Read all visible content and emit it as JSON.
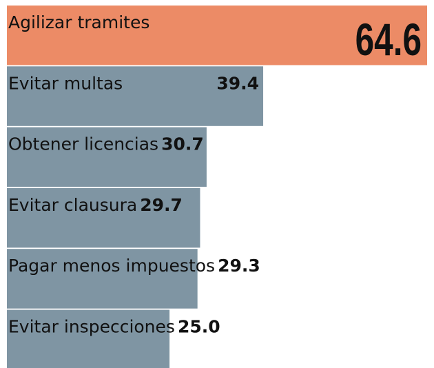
{
  "chart_data": {
    "type": "bar",
    "orientation": "horizontal",
    "categories": [
      "Agilizar tramites",
      "Evitar multas",
      "Obtener licencias",
      "Evitar clausura",
      "Pagar menos impuestos",
      "Evitar inspecciones"
    ],
    "values": [
      64.6,
      39.4,
      30.7,
      29.7,
      29.3,
      25.0
    ],
    "value_labels": [
      "64.6",
      "39.4",
      "30.7",
      "29.7",
      "29.3",
      "25.0"
    ],
    "colors": [
      "#ec8b66",
      "#7f95a3",
      "#7f95a3",
      "#7f95a3",
      "#7f95a3",
      "#7f95a3"
    ]
  }
}
